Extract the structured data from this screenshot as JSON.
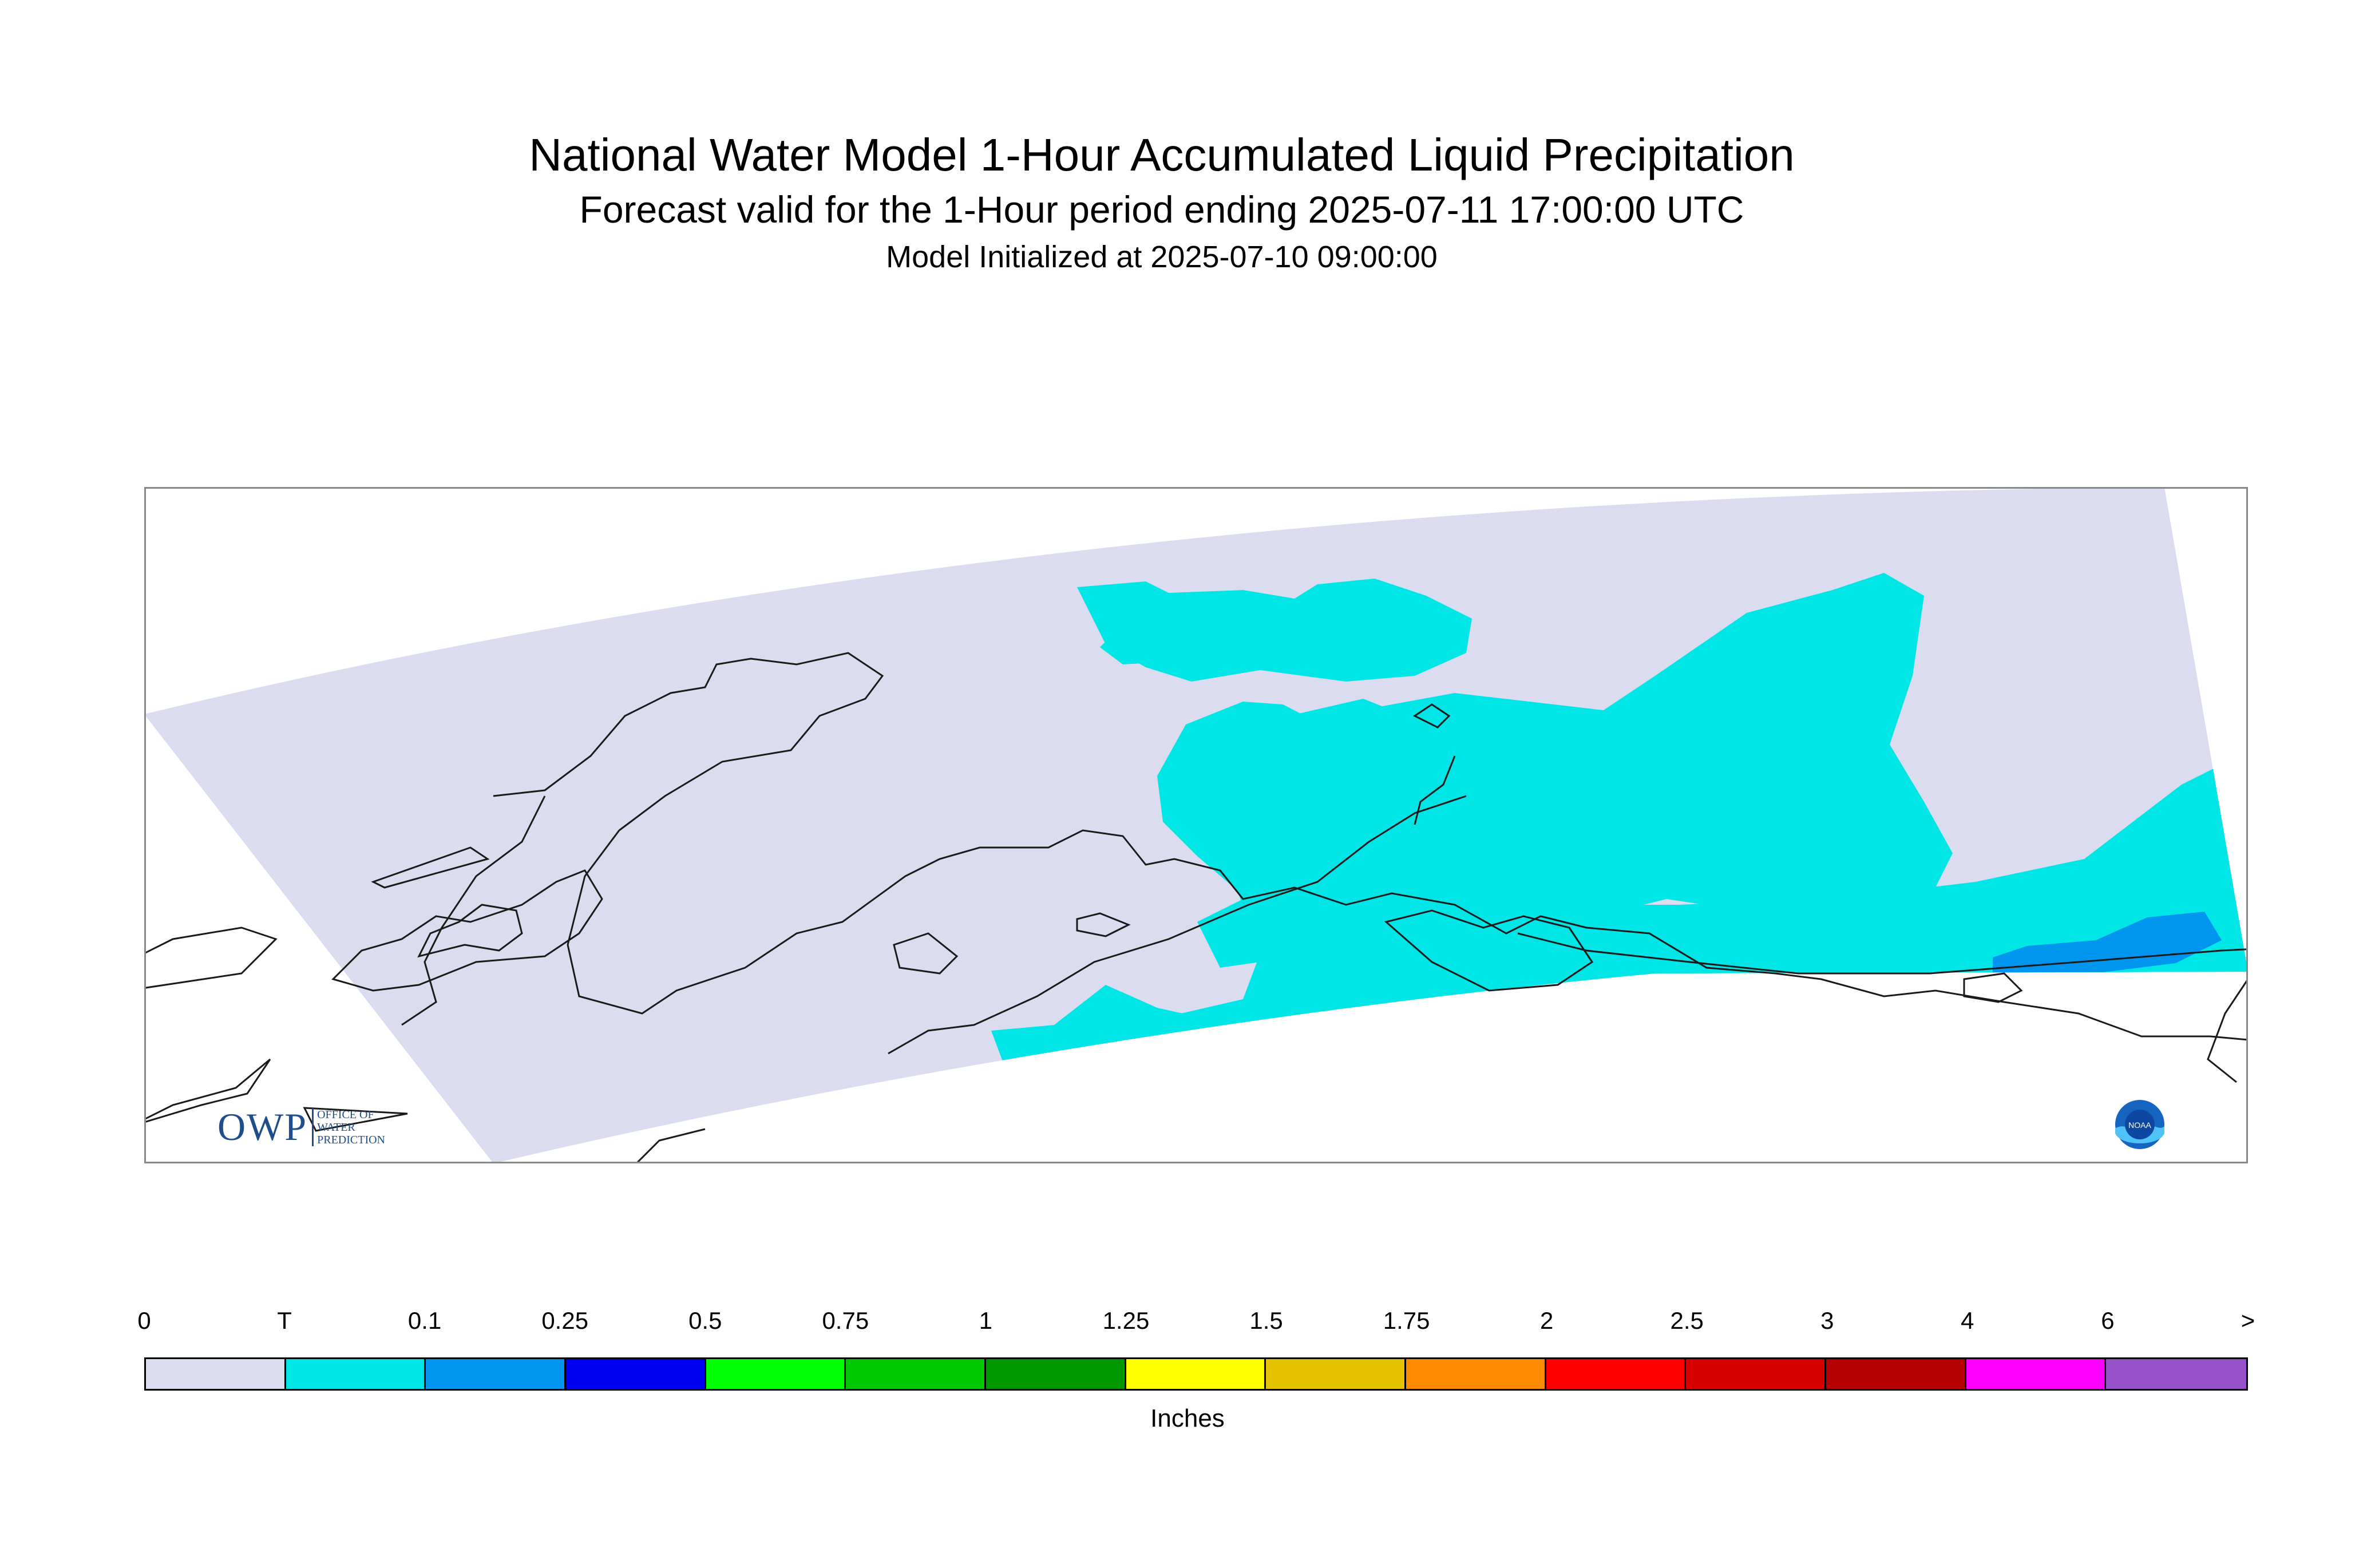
{
  "titles": {
    "title": "National Water Model 1-Hour Accumulated Liquid Precipitation",
    "subtitle": "Forecast valid for the 1-Hour period ending 2025-07-11 17:00:00 UTC",
    "init": "Model Initialized at 2025-07-10 09:00:00"
  },
  "legend": {
    "tick_labels": [
      "0",
      "T",
      "0.1",
      "0.25",
      "0.5",
      "0.75",
      "1",
      "1.25",
      "1.5",
      "1.75",
      "2",
      "2.5",
      "3",
      "4",
      "6",
      ">"
    ],
    "colors": [
      "#dcdcf0",
      "#00e6e6",
      "#0096f0",
      "#0000f0",
      "#00ff00",
      "#00c800",
      "#009600",
      "#ffff00",
      "#e6c300",
      "#ff8c00",
      "#ff0000",
      "#d70000",
      "#b40000",
      "#ff00ff",
      "#9650c8"
    ],
    "units_label": "Inches"
  },
  "map": {
    "colors": {
      "domain_fill": "#dcdcf0",
      "trace_fill": "#00e6e6",
      "light_fill": "#0096f0",
      "coastline": "#1a1a1a",
      "frame": "#888888"
    },
    "trace_region_centers": [
      [
        -146,
        66
      ],
      [
        -141,
        63.5
      ],
      [
        -134,
        62
      ],
      [
        -143,
        60.5
      ],
      [
        -148,
        60.5
      ],
      [
        -152,
        58.6
      ],
      [
        -135,
        58.5
      ]
    ]
  },
  "logos": {
    "owp_main": "OWP",
    "owp_sub": [
      "OFFICE OF",
      "WATER",
      "PREDICTION"
    ],
    "noaa_text": "NOAA"
  }
}
